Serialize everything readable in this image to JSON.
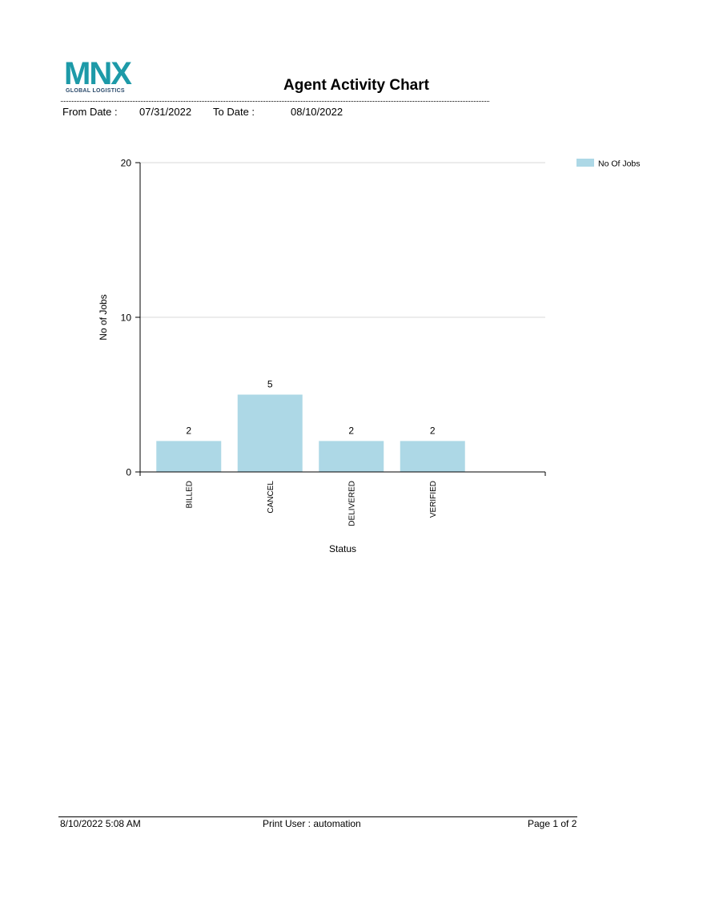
{
  "logo": {
    "text": "MNX",
    "subtitle": "GLOBAL LOGISTICS"
  },
  "report": {
    "title": "Agent Activity Chart"
  },
  "filters": {
    "from_label": "From Date :",
    "from_value": "07/31/2022",
    "to_label": "To Date :",
    "to_value": "08/10/2022"
  },
  "chart_data": {
    "type": "bar",
    "categories": [
      "BILLED",
      "CANCEL",
      "DELIVERED",
      "VERIFIED"
    ],
    "series": [
      {
        "name": "No Of Jobs",
        "values": [
          2,
          5,
          2,
          2
        ],
        "color": "#add8e6"
      }
    ],
    "xlabel": "Status",
    "ylabel": "No of Jobs",
    "ylim": [
      0,
      20
    ],
    "yticks": [
      0,
      10,
      20
    ],
    "grid": true,
    "data_labels": true,
    "legend": "top-right"
  },
  "footer": {
    "timestamp": "8/10/2022 5:08 AM",
    "print_user": "Print User : automation",
    "page": "Page 1 of 2"
  }
}
